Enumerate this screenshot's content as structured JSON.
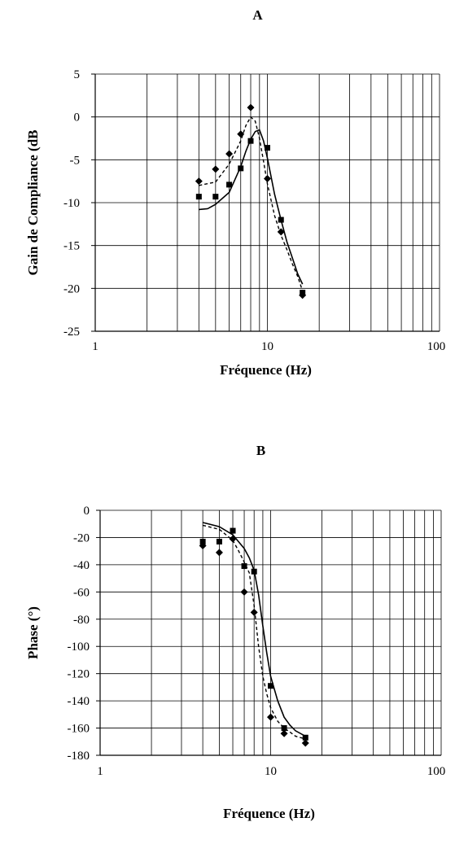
{
  "chart_data": [
    {
      "type": "scatter",
      "title": "A",
      "xlabel": "Fréquence (Hz)",
      "ylabel": "Gain de Compliance (dB",
      "x_scale": "log",
      "xlim": [
        1,
        100
      ],
      "ylim": [
        -25,
        5
      ],
      "grid": true,
      "x_ticks": [
        1,
        10,
        100
      ],
      "x_tick_labels": [
        "1",
        "10",
        "100"
      ],
      "y_ticks": [
        5,
        0,
        -5,
        -10,
        -15,
        -20,
        -25
      ],
      "y_tick_labels": [
        "5",
        "0",
        "-5",
        "-10",
        "-15",
        "-20",
        "-25"
      ],
      "series": [
        {
          "marker": "square",
          "line": "none",
          "x": [
            4,
            5,
            6,
            7,
            8,
            10,
            12,
            16
          ],
          "y": [
            -9.3,
            -9.3,
            -7.9,
            -6.0,
            -2.8,
            -3.6,
            -12.0,
            -20.5
          ]
        },
        {
          "marker": "diamond",
          "line": "none",
          "x": [
            4,
            5,
            6,
            7,
            8,
            10,
            12,
            16
          ],
          "y": [
            -7.5,
            -6.1,
            -4.3,
            -2.0,
            1.1,
            -7.2,
            -13.4,
            -20.8
          ]
        },
        {
          "marker": "none",
          "line": "solid",
          "x": [
            4,
            4.5,
            5,
            6,
            7,
            7.5,
            8,
            8.5,
            9,
            9.5,
            10,
            11,
            12,
            13,
            14,
            15,
            16
          ],
          "y": [
            -10.8,
            -10.7,
            -10.2,
            -8.8,
            -5.8,
            -4.0,
            -2.6,
            -1.7,
            -1.5,
            -2.8,
            -4.8,
            -9.0,
            -12.0,
            -14.6,
            -16.5,
            -18.3,
            -19.5
          ]
        },
        {
          "marker": "none",
          "line": "dashed",
          "x": [
            4,
            5,
            6,
            7,
            7.5,
            8,
            8.5,
            9,
            9.5,
            10,
            11,
            12,
            13,
            14,
            15,
            16
          ],
          "y": [
            -8.0,
            -7.6,
            -5.5,
            -2.8,
            -1.0,
            0.0,
            -0.5,
            -2.5,
            -5.2,
            -7.8,
            -11.5,
            -13.8,
            -15.5,
            -17.2,
            -18.6,
            -20.3
          ]
        }
      ]
    },
    {
      "type": "scatter",
      "title": "B",
      "xlabel": "Fréquence (Hz)",
      "ylabel": "Phase (°)",
      "x_scale": "log",
      "xlim": [
        1,
        100
      ],
      "ylim": [
        -180,
        0
      ],
      "grid": true,
      "x_ticks": [
        1,
        10,
        100
      ],
      "x_tick_labels": [
        "1",
        "10",
        "100"
      ],
      "y_ticks": [
        0,
        -20,
        -40,
        -60,
        -80,
        -100,
        -120,
        -140,
        -160,
        -180
      ],
      "y_tick_labels": [
        "0",
        "-20",
        "-40",
        "-60",
        "-80",
        "-100",
        "-120",
        "-140",
        "-160",
        "-180"
      ],
      "series": [
        {
          "marker": "square",
          "line": "none",
          "x": [
            4,
            5,
            6,
            7,
            8,
            10,
            12,
            16
          ],
          "y": [
            -23,
            -23,
            -15,
            -41,
            -45,
            -129,
            -160,
            -167
          ]
        },
        {
          "marker": "diamond",
          "line": "none",
          "x": [
            4,
            5,
            6,
            7,
            8,
            10,
            12,
            16
          ],
          "y": [
            -26,
            -31,
            -21,
            -60,
            -75,
            -152,
            -164,
            -171
          ]
        },
        {
          "marker": "none",
          "line": "solid",
          "x": [
            4,
            5,
            6,
            7,
            7.5,
            8,
            8.5,
            9,
            9.5,
            10,
            11,
            12,
            13,
            14,
            16
          ],
          "y": [
            -9,
            -12,
            -18,
            -28,
            -35,
            -44,
            -62,
            -85,
            -105,
            -122,
            -140,
            -152,
            -158,
            -162,
            -166
          ]
        },
        {
          "marker": "none",
          "line": "dashed",
          "x": [
            4,
            5,
            6,
            6.5,
            7,
            7.5,
            8,
            8.5,
            9,
            9.5,
            10,
            11,
            12,
            13,
            14,
            16
          ],
          "y": [
            -11,
            -14,
            -22,
            -30,
            -38,
            -46,
            -70,
            -100,
            -122,
            -135,
            -145,
            -155,
            -160,
            -163,
            -166,
            -168
          ]
        }
      ]
    }
  ]
}
